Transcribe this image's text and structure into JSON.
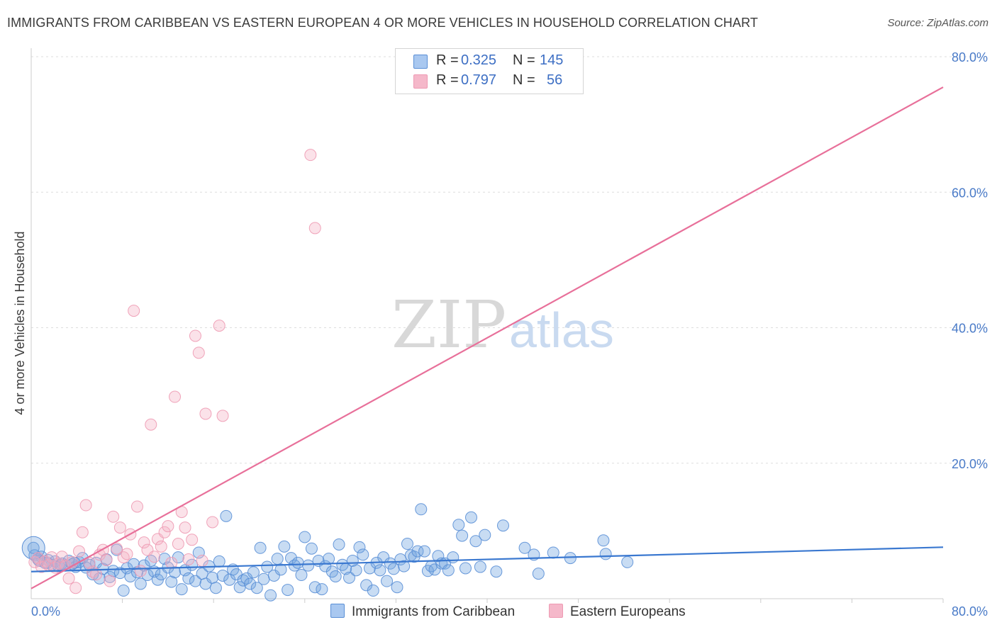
{
  "title": "IMMIGRANTS FROM CARIBBEAN VS EASTERN EUROPEAN 4 OR MORE VEHICLES IN HOUSEHOLD CORRELATION CHART",
  "source": "Source: ZipAtlas.com",
  "watermark": {
    "zip": "ZIP",
    "atlas": "atlas"
  },
  "legend": {
    "rows": [
      {
        "r_label": "R = ",
        "r_value": "0.325",
        "n_label": "N = ",
        "n_value": "145",
        "color": "#a9c8f0"
      },
      {
        "r_label": "R = ",
        "r_value": "0.797",
        "n_label": "N = ",
        "n_value": "56",
        "color": "#f5b8ca"
      }
    ]
  },
  "bottom_legend": [
    {
      "label": "Immigrants from Caribbean",
      "color": "#a9c8f0"
    },
    {
      "label": "Eastern Europeans",
      "color": "#f5b8ca"
    }
  ],
  "chart_data": {
    "type": "scatter",
    "title": "IMMIGRANTS FROM CARIBBEAN VS EASTERN EUROPEAN 4 OR MORE VEHICLES IN HOUSEHOLD CORRELATION CHART",
    "xlabel": "",
    "ylabel": "4 or more Vehicles in Household",
    "xlim": [
      0,
      80
    ],
    "ylim": [
      0,
      80
    ],
    "x_tick_labels": [
      "0.0%",
      "80.0%"
    ],
    "y_tick_labels": [
      "20.0%",
      "40.0%",
      "60.0%",
      "80.0%"
    ],
    "y_ticks": [
      20,
      40,
      60,
      80
    ],
    "grid": true,
    "legend_position": "top-center",
    "series": [
      {
        "name": "Immigrants from Caribbean",
        "color": "#6fa3e0",
        "stroke": "#5a8fd6",
        "trend": {
          "x": [
            0,
            80
          ],
          "y": [
            4.0,
            7.6
          ],
          "color": "#3a78d0"
        },
        "points": [
          [
            0.3,
            6.4
          ],
          [
            0.6,
            5.8
          ],
          [
            0.9,
            6.2
          ],
          [
            1.2,
            5.3
          ],
          [
            1.5,
            5.7
          ],
          [
            1.8,
            5.0
          ],
          [
            2.1,
            5.5
          ],
          [
            2.4,
            4.8
          ],
          [
            2.7,
            5.2
          ],
          [
            3.0,
            4.9
          ],
          [
            3.3,
            5.6
          ],
          [
            3.6,
            5.1
          ],
          [
            3.9,
            4.7
          ],
          [
            4.2,
            5.4
          ],
          [
            4.5,
            6.0
          ],
          [
            4.8,
            4.6
          ],
          [
            5.1,
            5.0
          ],
          [
            5.4,
            3.6
          ],
          [
            5.7,
            5.3
          ],
          [
            6.0,
            3.0
          ],
          [
            6.3,
            4.4
          ],
          [
            6.6,
            5.8
          ],
          [
            6.9,
            3.2
          ],
          [
            7.2,
            4.1
          ],
          [
            7.5,
            7.2
          ],
          [
            7.8,
            3.8
          ],
          [
            8.1,
            1.2
          ],
          [
            8.4,
            4.5
          ],
          [
            8.7,
            3.3
          ],
          [
            9.0,
            5.1
          ],
          [
            9.3,
            3.9
          ],
          [
            9.6,
            2.2
          ],
          [
            9.9,
            4.9
          ],
          [
            10.2,
            3.5
          ],
          [
            10.5,
            5.6
          ],
          [
            10.8,
            4.0
          ],
          [
            11.1,
            2.8
          ],
          [
            11.4,
            3.6
          ],
          [
            11.7,
            5.9
          ],
          [
            12.0,
            4.6
          ],
          [
            12.3,
            2.5
          ],
          [
            12.6,
            3.9
          ],
          [
            12.9,
            6.1
          ],
          [
            13.2,
            1.4
          ],
          [
            13.5,
            4.2
          ],
          [
            13.8,
            3.0
          ],
          [
            14.1,
            5.0
          ],
          [
            14.4,
            2.6
          ],
          [
            14.7,
            6.8
          ],
          [
            15.0,
            3.7
          ],
          [
            15.3,
            2.2
          ],
          [
            15.6,
            4.8
          ],
          [
            15.9,
            3.1
          ],
          [
            16.2,
            1.6
          ],
          [
            16.5,
            5.5
          ],
          [
            16.8,
            3.4
          ],
          [
            17.1,
            12.2
          ],
          [
            17.4,
            2.8
          ],
          [
            17.7,
            4.3
          ],
          [
            18.0,
            3.6
          ],
          [
            18.3,
            1.7
          ],
          [
            18.6,
            2.7
          ],
          [
            18.9,
            3.0
          ],
          [
            19.2,
            2.2
          ],
          [
            19.5,
            3.9
          ],
          [
            19.8,
            1.6
          ],
          [
            20.1,
            7.5
          ],
          [
            20.4,
            2.9
          ],
          [
            20.7,
            4.7
          ],
          [
            21.0,
            0.5
          ],
          [
            21.3,
            3.4
          ],
          [
            21.6,
            5.9
          ],
          [
            21.9,
            4.3
          ],
          [
            22.2,
            7.7
          ],
          [
            22.5,
            1.3
          ],
          [
            22.8,
            6.0
          ],
          [
            23.1,
            4.9
          ],
          [
            23.4,
            5.3
          ],
          [
            23.7,
            3.5
          ],
          [
            24.0,
            9.1
          ],
          [
            24.3,
            4.9
          ],
          [
            24.6,
            7.4
          ],
          [
            24.9,
            1.7
          ],
          [
            25.2,
            5.6
          ],
          [
            25.5,
            1.4
          ],
          [
            25.8,
            4.8
          ],
          [
            26.1,
            5.9
          ],
          [
            26.4,
            4.0
          ],
          [
            26.7,
            3.3
          ],
          [
            27.0,
            8.0
          ],
          [
            27.3,
            5.0
          ],
          [
            27.6,
            4.4
          ],
          [
            27.9,
            3.1
          ],
          [
            28.2,
            5.6
          ],
          [
            28.5,
            4.2
          ],
          [
            28.8,
            7.6
          ],
          [
            29.1,
            6.5
          ],
          [
            29.4,
            2.0
          ],
          [
            29.7,
            4.5
          ],
          [
            30.0,
            1.2
          ],
          [
            30.3,
            5.3
          ],
          [
            30.6,
            4.2
          ],
          [
            30.9,
            6.1
          ],
          [
            31.2,
            2.6
          ],
          [
            31.5,
            5.2
          ],
          [
            31.8,
            4.4
          ],
          [
            32.1,
            1.7
          ],
          [
            32.4,
            5.8
          ],
          [
            32.7,
            4.8
          ],
          [
            33.0,
            8.1
          ],
          [
            33.3,
            6.4
          ],
          [
            33.6,
            6.2
          ],
          [
            33.9,
            7.0
          ],
          [
            34.2,
            13.2
          ],
          [
            34.5,
            7.0
          ],
          [
            34.8,
            4.1
          ],
          [
            35.1,
            4.8
          ],
          [
            35.4,
            4.3
          ],
          [
            35.7,
            6.3
          ],
          [
            36.0,
            5.2
          ],
          [
            36.3,
            5.2
          ],
          [
            36.6,
            4.2
          ],
          [
            37.0,
            6.1
          ],
          [
            37.5,
            10.9
          ],
          [
            37.8,
            9.3
          ],
          [
            38.1,
            4.5
          ],
          [
            38.6,
            12.0
          ],
          [
            39.0,
            8.5
          ],
          [
            39.4,
            4.7
          ],
          [
            39.8,
            9.4
          ],
          [
            40.8,
            4.0
          ],
          [
            41.4,
            10.8
          ],
          [
            43.3,
            7.5
          ],
          [
            44.1,
            6.5
          ],
          [
            44.5,
            3.7
          ],
          [
            45.8,
            6.8
          ],
          [
            47.3,
            6.0
          ],
          [
            50.2,
            8.6
          ],
          [
            50.4,
            6.6
          ],
          [
            52.3,
            5.4
          ],
          [
            0.2,
            7.5
          ],
          [
            0.7,
            5.6
          ],
          [
            1.4,
            5.3
          ],
          [
            2.6,
            5.0
          ],
          [
            3.8,
            5.3
          ]
        ]
      },
      {
        "name": "Eastern Europeans",
        "color": "#f5b3c6",
        "stroke": "#ee9ab3",
        "trend": {
          "x": [
            0,
            80
          ],
          "y": [
            1.5,
            75.5
          ],
          "color": "#e8709a"
        },
        "points": [
          [
            0.3,
            5.4
          ],
          [
            0.6,
            6.0
          ],
          [
            0.9,
            4.7
          ],
          [
            1.2,
            5.5
          ],
          [
            1.5,
            5.0
          ],
          [
            1.8,
            6.1
          ],
          [
            2.1,
            4.6
          ],
          [
            2.4,
            5.2
          ],
          [
            2.7,
            6.2
          ],
          [
            3.0,
            4.9
          ],
          [
            3.3,
            3.0
          ],
          [
            3.6,
            5.4
          ],
          [
            3.9,
            1.6
          ],
          [
            4.2,
            7.0
          ],
          [
            4.5,
            9.8
          ],
          [
            4.8,
            13.8
          ],
          [
            5.1,
            5.3
          ],
          [
            5.4,
            4.0
          ],
          [
            5.7,
            3.6
          ],
          [
            6.0,
            6.5
          ],
          [
            6.3,
            7.2
          ],
          [
            6.6,
            5.7
          ],
          [
            6.9,
            2.6
          ],
          [
            7.2,
            12.1
          ],
          [
            7.5,
            7.4
          ],
          [
            7.8,
            10.5
          ],
          [
            8.1,
            6.1
          ],
          [
            8.4,
            6.6
          ],
          [
            8.7,
            9.5
          ],
          [
            9.0,
            42.5
          ],
          [
            9.3,
            13.6
          ],
          [
            9.6,
            4.1
          ],
          [
            9.9,
            8.3
          ],
          [
            10.2,
            7.2
          ],
          [
            10.5,
            25.7
          ],
          [
            10.8,
            6.2
          ],
          [
            11.1,
            8.8
          ],
          [
            11.4,
            7.7
          ],
          [
            11.7,
            9.8
          ],
          [
            12.0,
            10.7
          ],
          [
            12.3,
            5.3
          ],
          [
            12.6,
            29.8
          ],
          [
            12.9,
            8.1
          ],
          [
            13.2,
            12.8
          ],
          [
            13.5,
            10.5
          ],
          [
            13.8,
            5.8
          ],
          [
            14.1,
            8.7
          ],
          [
            14.4,
            38.8
          ],
          [
            14.7,
            36.3
          ],
          [
            15.0,
            5.6
          ],
          [
            15.3,
            27.3
          ],
          [
            15.9,
            11.3
          ],
          [
            16.5,
            40.3
          ],
          [
            16.8,
            27.0
          ],
          [
            24.5,
            65.5
          ],
          [
            24.9,
            54.7
          ]
        ]
      }
    ]
  }
}
